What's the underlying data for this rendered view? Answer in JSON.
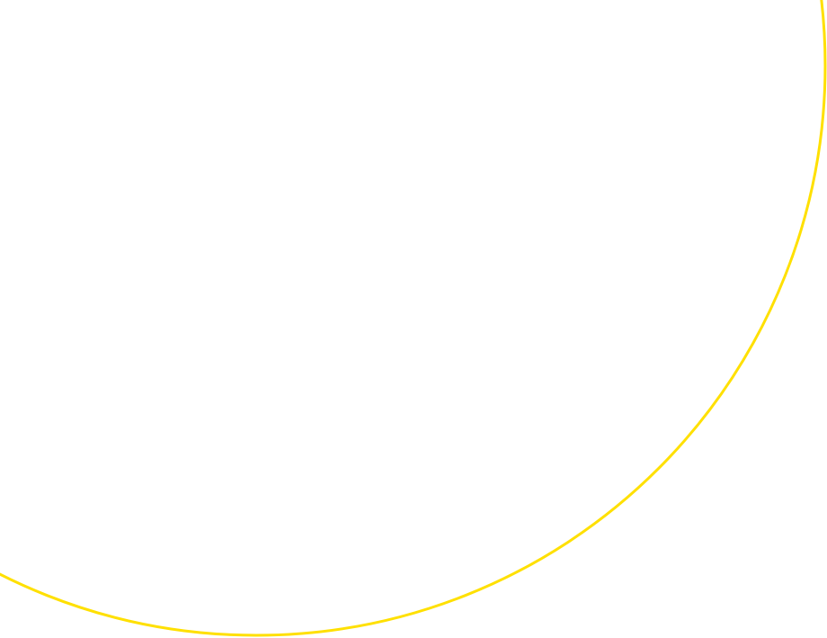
{
  "colors": {
    "background": "#ffffff",
    "arc": "#ffe000"
  }
}
